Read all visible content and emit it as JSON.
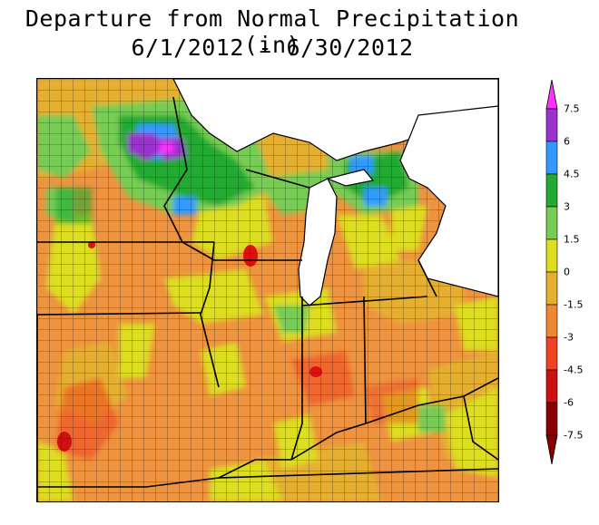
{
  "title": {
    "line1": "Departure from Normal Precipitation (in)",
    "line2": "6/1/2012 - 6/30/2012"
  },
  "legend": {
    "levels": [
      {
        "label": "7.5",
        "color": "#ff33ff"
      },
      {
        "label": "6",
        "color": "#9933cc"
      },
      {
        "label": "4.5",
        "color": "#3399ff"
      },
      {
        "label": "3",
        "color": "#22aa33"
      },
      {
        "label": "1.5",
        "color": "#77cc55"
      },
      {
        "label": "0",
        "color": "#dddd22"
      },
      {
        "label": "-1.5",
        "color": "#e5b030"
      },
      {
        "label": "-3",
        "color": "#ee8833"
      },
      {
        "label": "-4.5",
        "color": "#ee4422"
      },
      {
        "label": "-6",
        "color": "#cc1111"
      },
      {
        "label": "-7.5",
        "color": "#880000"
      }
    ]
  },
  "colors": {
    "land_base": "#ee9340",
    "water": "#ffffff",
    "county_line": "#222222",
    "state_line": "#000000"
  }
}
